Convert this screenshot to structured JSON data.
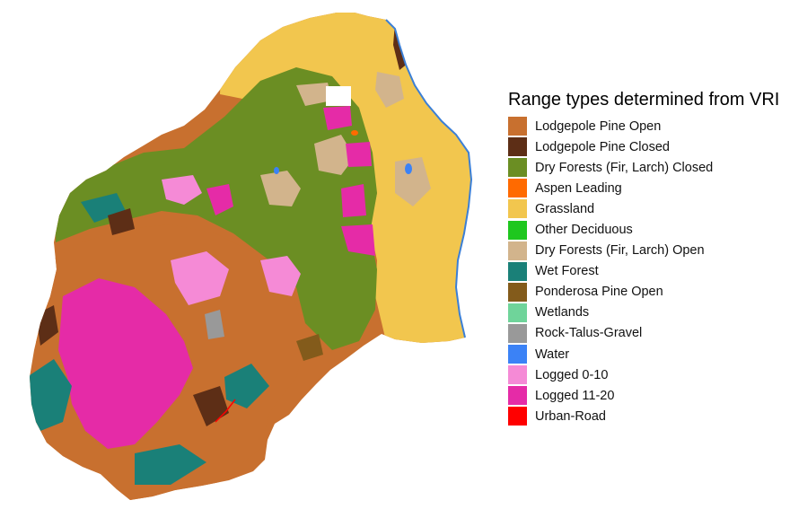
{
  "legend": {
    "title": "Range types determined from VRI",
    "items": [
      {
        "label": "Lodgepole Pine Open",
        "color": "#c8702f"
      },
      {
        "label": "Lodgepole Pine Closed",
        "color": "#5d2e16"
      },
      {
        "label": "Dry Forests (Fir, Larch) Closed",
        "color": "#6b8e23"
      },
      {
        "label": "Aspen Leading",
        "color": "#ff6a00"
      },
      {
        "label": "Grassland",
        "color": "#f2c64e"
      },
      {
        "label": "Other Deciduous",
        "color": "#1ec71e"
      },
      {
        "label": "Dry Forests (Fir, Larch) Open",
        "color": "#d2b48c"
      },
      {
        "label": "Wet Forest",
        "color": "#1a8078"
      },
      {
        "label": "Ponderosa Pine Open",
        "color": "#835b1b"
      },
      {
        "label": "Wetlands",
        "color": "#6fd49a"
      },
      {
        "label": "Rock-Talus-Gravel",
        "color": "#999999"
      },
      {
        "label": "Water",
        "color": "#3b82f6"
      },
      {
        "label": "Logged 0-10",
        "color": "#f58ad6"
      },
      {
        "label": "Logged 11-20",
        "color": "#e52ba7"
      },
      {
        "label": "Urban-Road",
        "color": "#ff0000"
      }
    ]
  },
  "map": {
    "colors": {
      "lodgepole_open": "#c8702f",
      "lodgepole_closed": "#5d2e16",
      "dry_closed": "#6b8e23",
      "aspen": "#ff6a00",
      "grassland": "#f2c64e",
      "deciduous": "#1ec71e",
      "dry_open": "#d2b48c",
      "wet_forest": "#1a8078",
      "ponderosa": "#835b1b",
      "wetlands": "#6fd49a",
      "rock": "#999999",
      "water": "#3b82f6",
      "logged_0_10": "#f58ad6",
      "logged_11_20": "#e52ba7",
      "urban": "#ff0000",
      "river_outline": "#3b7fd6"
    }
  }
}
